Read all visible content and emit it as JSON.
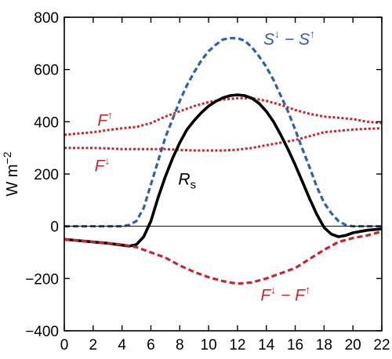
{
  "chart_data": {
    "type": "line",
    "title": "",
    "xlabel": "",
    "ylabel": "W m−2",
    "xlim": [
      0,
      22
    ],
    "ylim": [
      -400,
      800
    ],
    "xticks": [
      0,
      2,
      4,
      6,
      8,
      10,
      12,
      14,
      16,
      18,
      20,
      22
    ],
    "yticks": [
      -400,
      -200,
      0,
      200,
      400,
      600,
      800
    ],
    "grid": false,
    "zero_line": true,
    "series": [
      {
        "name": "S↓ − S↑",
        "color": "#2e5fae",
        "dash": "dashed",
        "x": [
          0,
          2,
          4,
          4.5,
          5,
          5.5,
          6,
          6.5,
          7,
          7.5,
          8,
          8.5,
          9,
          9.5,
          10,
          10.5,
          11,
          11.5,
          12,
          12.5,
          13,
          13.5,
          14,
          14.5,
          15,
          15.5,
          16,
          16.5,
          17,
          17.5,
          18,
          18.5,
          19,
          19.5,
          20,
          20.5,
          21,
          22
        ],
        "y": [
          0,
          0,
          0,
          5,
          20,
          70,
          160,
          250,
          340,
          410,
          480,
          540,
          590,
          635,
          670,
          695,
          715,
          720,
          720,
          710,
          685,
          650,
          610,
          560,
          500,
          440,
          370,
          295,
          225,
          150,
          90,
          50,
          20,
          5,
          0,
          0,
          0,
          0
        ]
      },
      {
        "name": "F↑",
        "color": "#c8262c",
        "dash": "dotted",
        "x": [
          0,
          1,
          2,
          3,
          4,
          5,
          6,
          7,
          8,
          9,
          10,
          11,
          12,
          13,
          14,
          15,
          16,
          17,
          18,
          19,
          20,
          21,
          22
        ],
        "y": [
          350,
          355,
          360,
          368,
          375,
          380,
          395,
          420,
          440,
          460,
          475,
          485,
          490,
          490,
          480,
          465,
          445,
          430,
          420,
          415,
          410,
          400,
          395
        ]
      },
      {
        "name": "F↓",
        "color": "#c8262c",
        "dash": "dotted",
        "x": [
          0,
          1,
          2,
          3,
          4,
          5,
          6,
          7,
          8,
          9,
          10,
          11,
          12,
          13,
          14,
          15,
          16,
          17,
          18,
          19,
          20,
          21,
          22
        ],
        "y": [
          300,
          300,
          300,
          298,
          295,
          295,
          295,
          295,
          292,
          290,
          290,
          290,
          293,
          300,
          310,
          320,
          330,
          345,
          360,
          365,
          370,
          373,
          375
        ]
      },
      {
        "name": "Rs",
        "color": "#000000",
        "dash": "solid",
        "x": [
          0,
          1,
          2,
          3,
          4,
          4.5,
          5,
          5.5,
          6,
          6.5,
          7,
          7.5,
          8,
          8.5,
          9,
          9.5,
          10,
          10.5,
          11,
          11.5,
          12,
          12.5,
          13,
          13.5,
          14,
          14.5,
          15,
          15.5,
          16,
          16.5,
          17,
          17.5,
          18,
          18.5,
          19,
          19.5,
          20,
          20.5,
          21,
          22
        ],
        "y": [
          -50,
          -55,
          -60,
          -65,
          -72,
          -76,
          -70,
          -40,
          20,
          110,
          190,
          260,
          320,
          370,
          405,
          435,
          460,
          478,
          492,
          500,
          503,
          500,
          490,
          470,
          440,
          400,
          350,
          295,
          235,
          170,
          105,
          45,
          -5,
          -30,
          -40,
          -35,
          -25,
          -20,
          -15,
          -10
        ]
      },
      {
        "name": "F↓ − F↑",
        "color": "#c8262c",
        "dash": "dashed",
        "x": [
          0,
          1,
          2,
          3,
          4,
          5,
          6,
          7,
          8,
          9,
          10,
          11,
          12,
          13,
          14,
          15,
          16,
          17,
          18,
          19,
          20,
          21,
          22
        ],
        "y": [
          -50,
          -55,
          -60,
          -65,
          -70,
          -80,
          -100,
          -120,
          -150,
          -175,
          -195,
          -210,
          -220,
          -215,
          -200,
          -180,
          -160,
          -125,
          -90,
          -60,
          -45,
          -35,
          -20
        ]
      }
    ],
    "labels": [
      {
        "series": "S↓ − S↑",
        "parts": [
          "S",
          "↓",
          " − S",
          "↑"
        ],
        "x": 13.8,
        "y": 695,
        "color": "#2e5fae"
      },
      {
        "series": "F↑",
        "parts": [
          "F",
          "↑"
        ],
        "x": 2.3,
        "y": 385,
        "color": "#c8262c"
      },
      {
        "series": "F↓",
        "parts": [
          "F",
          "↓"
        ],
        "x": 2.1,
        "y": 210,
        "color": "#c8262c"
      },
      {
        "series": "Rs",
        "parts": [
          "R",
          "s"
        ],
        "x": 7.9,
        "y": 160,
        "color": "#000000"
      },
      {
        "series": "F↓ − F↑",
        "parts": [
          "F",
          "↓",
          " − F",
          "↑"
        ],
        "x": 13.6,
        "y": -285,
        "color": "#c8262c"
      }
    ]
  }
}
